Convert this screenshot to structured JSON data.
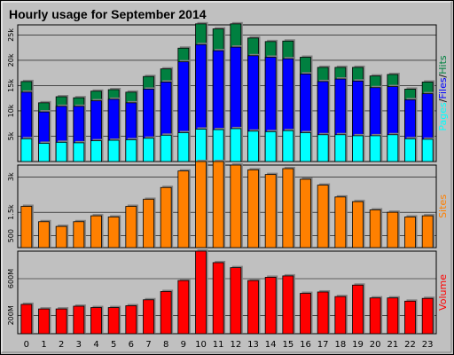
{
  "colors": {
    "frame": "#c0c0c0",
    "plot_bg": "#c0c0c0",
    "title": "#0000ff",
    "hits": "#008040",
    "files": "#0000ff",
    "pages": "#00ffff",
    "sites": "#ff8000",
    "volume": "#ff0000"
  },
  "chart_data": [
    {
      "type": "bar",
      "title": "Hourly usage for September 2014",
      "categories": [
        "0",
        "1",
        "2",
        "3",
        "4",
        "5",
        "6",
        "7",
        "8",
        "9",
        "10",
        "11",
        "12",
        "13",
        "14",
        "15",
        "16",
        "17",
        "18",
        "19",
        "20",
        "21",
        "22",
        "23"
      ],
      "ylim": [
        0,
        27000
      ],
      "yticks": [
        5000,
        10000,
        15000,
        20000,
        25000
      ],
      "ytick_labels": [
        "5k",
        "10k",
        "15k",
        "20k",
        "25k"
      ],
      "series": [
        {
          "name": "Hits",
          "values": [
            15800,
            11600,
            12800,
            12600,
            13900,
            14200,
            13700,
            16800,
            18300,
            22400,
            27200,
            26200,
            27200,
            24400,
            23700,
            23800,
            20600,
            18600,
            18600,
            18600,
            16900,
            17200,
            14300,
            15700
          ]
        },
        {
          "name": "Files",
          "values": [
            13700,
            9800,
            10900,
            10900,
            12000,
            12300,
            11600,
            14300,
            15700,
            19700,
            23100,
            21900,
            22600,
            20900,
            20600,
            20300,
            17300,
            15800,
            16300,
            15900,
            14600,
            14800,
            12200,
            13400
          ]
        },
        {
          "name": "Pages",
          "values": [
            4500,
            3600,
            3800,
            3700,
            4100,
            4200,
            4300,
            4600,
            5200,
            5700,
            6400,
            6300,
            6500,
            6000,
            5900,
            6100,
            5700,
            5300,
            5300,
            5100,
            5100,
            5300,
            4500,
            4400
          ]
        }
      ],
      "legend": [
        "Pages",
        "/",
        "Files",
        "/",
        "Hits"
      ]
    },
    {
      "type": "bar",
      "categories": [
        "0",
        "1",
        "2",
        "3",
        "4",
        "5",
        "6",
        "7",
        "8",
        "9",
        "10",
        "11",
        "12",
        "13",
        "14",
        "15",
        "16",
        "17",
        "18",
        "19",
        "20",
        "21",
        "22",
        "23"
      ],
      "ylim": [
        0,
        3500
      ],
      "yticks": [
        500,
        1500,
        3000
      ],
      "ytick_labels": [
        "500",
        "1.5k",
        "3k"
      ],
      "series": [
        {
          "name": "Sites",
          "values": [
            1750,
            1100,
            900,
            1100,
            1350,
            1300,
            1750,
            2050,
            2550,
            3250,
            3650,
            3650,
            3500,
            3300,
            3100,
            3350,
            2900,
            2650,
            2150,
            1950,
            1600,
            1500,
            1300,
            1350
          ]
        }
      ],
      "legend": [
        "Sites"
      ]
    },
    {
      "type": "bar",
      "categories": [
        "0",
        "1",
        "2",
        "3",
        "4",
        "5",
        "6",
        "7",
        "8",
        "9",
        "10",
        "11",
        "12",
        "13",
        "14",
        "15",
        "16",
        "17",
        "18",
        "19",
        "20",
        "21",
        "22",
        "23"
      ],
      "ylim": [
        0,
        900
      ],
      "yticks": [
        200,
        600
      ],
      "ytick_labels": [
        "200M",
        "600M"
      ],
      "series": [
        {
          "name": "Volume",
          "values": [
            320,
            270,
            270,
            300,
            285,
            285,
            305,
            370,
            460,
            580,
            900,
            775,
            720,
            580,
            615,
            630,
            440,
            455,
            405,
            530,
            390,
            390,
            355,
            385
          ]
        }
      ],
      "legend": [
        "Volume"
      ]
    }
  ]
}
